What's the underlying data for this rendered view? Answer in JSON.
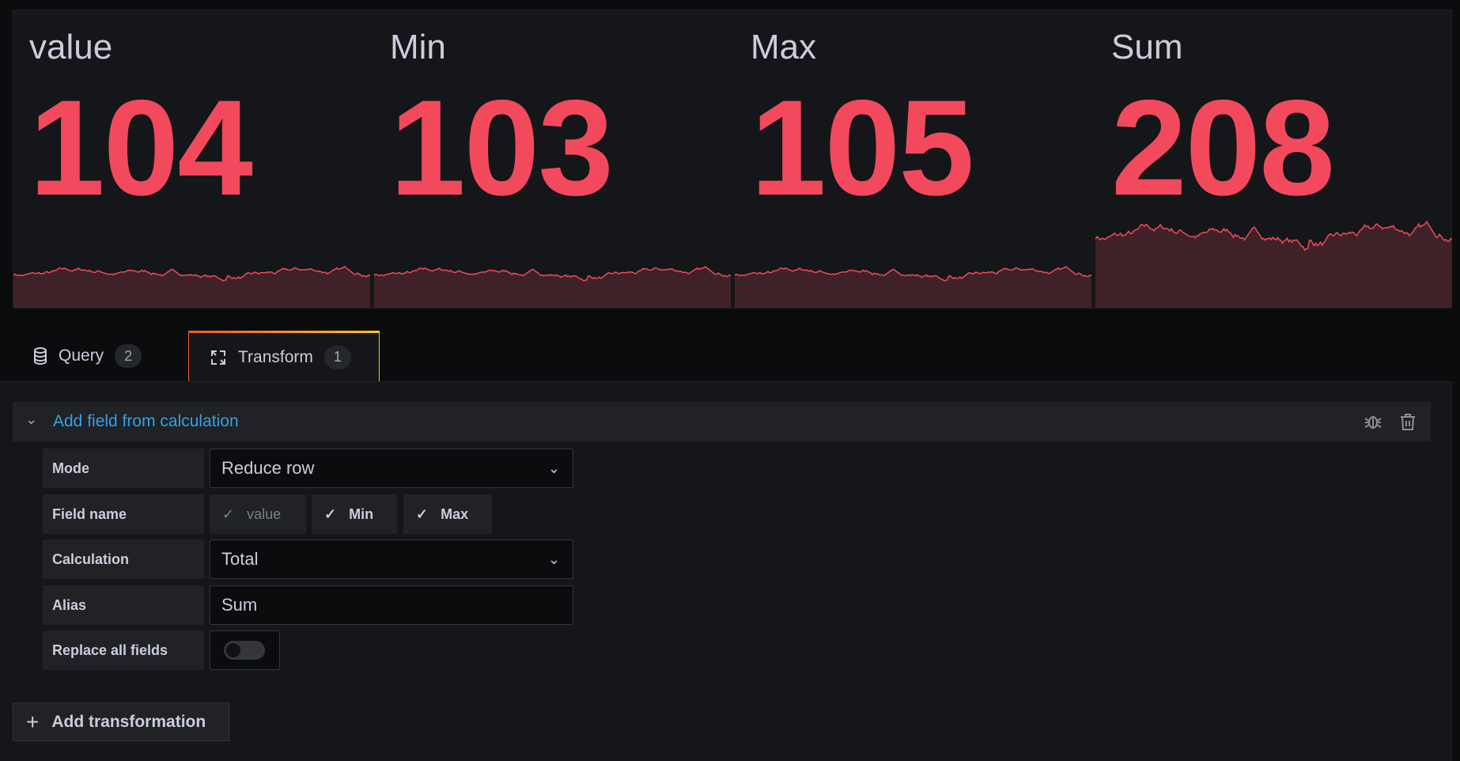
{
  "stats": [
    {
      "title": "value",
      "value": "104"
    },
    {
      "title": "Min",
      "value": "103"
    },
    {
      "title": "Max",
      "value": "105"
    },
    {
      "title": "Sum",
      "value": "208"
    }
  ],
  "colors": {
    "value": "#f2495c",
    "sparkline_fill": "#3f2227",
    "link": "#33a2e5"
  },
  "tabs": [
    {
      "label": "Query",
      "count": "2",
      "icon": "database-icon"
    },
    {
      "label": "Transform",
      "count": "1",
      "icon": "transform-icon",
      "active": true
    }
  ],
  "transformation": {
    "title": "Add field from calculation",
    "mode_label": "Mode",
    "mode_value": "Reduce row",
    "field_name_label": "Field name",
    "fields": [
      {
        "name": "value",
        "checked": false
      },
      {
        "name": "Min",
        "checked": true
      },
      {
        "name": "Max",
        "checked": true
      }
    ],
    "calculation_label": "Calculation",
    "calculation_value": "Total",
    "alias_label": "Alias",
    "alias_value": "Sum",
    "replace_label": "Replace all fields",
    "replace_on": false
  },
  "add_transformation": "Add transformation"
}
